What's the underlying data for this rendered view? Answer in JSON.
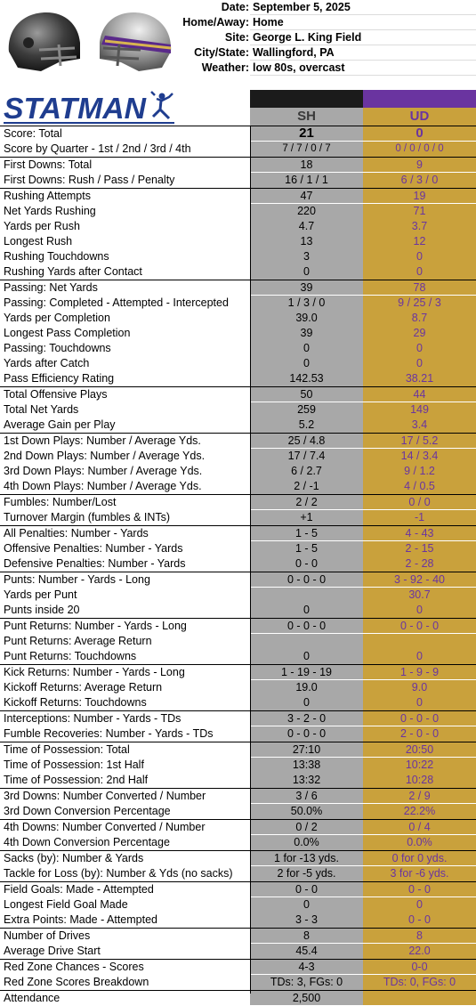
{
  "game_info": [
    {
      "label": "Date:",
      "value": "September 5, 2025"
    },
    {
      "label": "Home/Away:",
      "value": "Home"
    },
    {
      "label": "Site:",
      "value": "George L. King Field"
    },
    {
      "label": "City/State:",
      "value": "Wallingford, PA"
    },
    {
      "label": "Weather:",
      "value": "low 80s, overcast"
    }
  ],
  "logo": {
    "text": "STATMAN",
    "icon": "quarterback-icon"
  },
  "helmets": {
    "left_icon": "helmet-dark-icon",
    "right_icon": "helmet-silver-purple-icon"
  },
  "teams": {
    "home": "SH",
    "away": "UD"
  },
  "colors": {
    "home_col": "#a8a8a8",
    "away_col": "#c9a13c",
    "away_text": "#6a34a0",
    "logo_blue": "#1f3d8f"
  },
  "stats": [
    {
      "label": "Score:  Total",
      "sh": "21",
      "ud": "0"
    },
    {
      "label": "Score by Quarter - 1st / 2nd / 3rd / 4th",
      "sh": "7 / 7 / 0 / 7",
      "ud": "0 / 0 / 0 / 0"
    },
    {
      "label": "First Downs:  Total",
      "sh": "18",
      "ud": "9"
    },
    {
      "label": "First Downs:  Rush / Pass / Penalty",
      "sh": "16 / 1 / 1",
      "ud": "6 / 3 / 0"
    },
    {
      "label": "Rushing Attempts",
      "sh": "47",
      "ud": "19"
    },
    {
      "label": "Net Yards Rushing",
      "sh": "220",
      "ud": "71"
    },
    {
      "label": "Yards per Rush",
      "sh": "4.7",
      "ud": "3.7"
    },
    {
      "label": "Longest Rush",
      "sh": "13",
      "ud": "12"
    },
    {
      "label": "Rushing Touchdowns",
      "sh": "3",
      "ud": "0"
    },
    {
      "label": "Rushing Yards after Contact",
      "sh": "0",
      "ud": "0"
    },
    {
      "label": "Passing:  Net Yards",
      "sh": "39",
      "ud": "78"
    },
    {
      "label": "Passing:  Completed - Attempted - Intercepted",
      "sh": "1 / 3 / 0",
      "ud": "9 / 25 / 3"
    },
    {
      "label": "Yards per Completion",
      "sh": "39.0",
      "ud": "8.7"
    },
    {
      "label": "Longest Pass Completion",
      "sh": "39",
      "ud": "29"
    },
    {
      "label": "Passing:  Touchdowns",
      "sh": "0",
      "ud": "0"
    },
    {
      "label": "Yards after Catch",
      "sh": "0",
      "ud": "0"
    },
    {
      "label": "Pass Efficiency Rating",
      "sh": "142.53",
      "ud": "38.21"
    },
    {
      "label": "Total Offensive Plays",
      "sh": "50",
      "ud": "44"
    },
    {
      "label": "Total Net Yards",
      "sh": "259",
      "ud": "149"
    },
    {
      "label": "Average Gain per Play",
      "sh": "5.2",
      "ud": "3.4"
    },
    {
      "label": "1st Down Plays:  Number / Average Yds.",
      "sh": "25 / 4.8",
      "ud": "17 / 5.2"
    },
    {
      "label": "2nd Down Plays:  Number / Average Yds.",
      "sh": "17 / 7.4",
      "ud": "14 / 3.4"
    },
    {
      "label": "3rd Down Plays:  Number / Average Yds.",
      "sh": "6 / 2.7",
      "ud": "9 / 1.2"
    },
    {
      "label": "4th Down Plays:  Number / Average Yds.",
      "sh": "2 / -1",
      "ud": "4 / 0.5"
    },
    {
      "label": "Fumbles:  Number/Lost",
      "sh": "2 / 2",
      "ud": "0 / 0"
    },
    {
      "label": "Turnover Margin (fumbles & INTs)",
      "sh": "+1",
      "ud": "-1"
    },
    {
      "label": "All Penalties:  Number - Yards",
      "sh": "1 - 5",
      "ud": "4 - 43"
    },
    {
      "label": "Offensive Penalties:  Number - Yards",
      "sh": "1 - 5",
      "ud": "2 - 15"
    },
    {
      "label": "Defensive Penalties:  Number - Yards",
      "sh": "0 - 0",
      "ud": "2 - 28"
    },
    {
      "label": "Punts:  Number - Yards - Long",
      "sh": "0 - 0 - 0",
      "ud": "3 - 92 - 40"
    },
    {
      "label": "Yards per Punt",
      "sh": "",
      "ud": "30.7"
    },
    {
      "label": "Punts inside 20",
      "sh": "0",
      "ud": "0"
    },
    {
      "label": "Punt Returns:  Number - Yards - Long",
      "sh": "0 - 0 - 0",
      "ud": "0 - 0 - 0"
    },
    {
      "label": "Punt Returns:  Average Return",
      "sh": "",
      "ud": ""
    },
    {
      "label": "Punt Returns:  Touchdowns",
      "sh": "0",
      "ud": "0"
    },
    {
      "label": "Kick Returns:  Number - Yards - Long",
      "sh": "1 - 19 - 19",
      "ud": "1 - 9 - 9"
    },
    {
      "label": "Kickoff Returns:  Average Return",
      "sh": "19.0",
      "ud": "9.0"
    },
    {
      "label": "Kickoff Returns:  Touchdowns",
      "sh": "0",
      "ud": "0"
    },
    {
      "label": "Interceptions: Number - Yards - TDs",
      "sh": "3 - 2 - 0",
      "ud": "0 - 0 - 0"
    },
    {
      "label": "Fumble Recoveries: Number - Yards - TDs",
      "sh": "0 - 0 - 0",
      "ud": "2 - 0 - 0"
    },
    {
      "label": "Time of Possession:  Total",
      "sh": "27:10",
      "ud": "20:50"
    },
    {
      "label": "Time of Possession:   1st Half",
      "sh": "13:38",
      "ud": "10:22"
    },
    {
      "label": "Time of Possession:   2nd Half",
      "sh": "13:32",
      "ud": "10:28"
    },
    {
      "label": "3rd Downs:  Number Converted / Number",
      "sh": "3 / 6",
      "ud": "2 / 9"
    },
    {
      "label": "3rd Down Conversion Percentage",
      "sh": "50.0%",
      "ud": "22.2%"
    },
    {
      "label": "4th Downs:  Number Converted / Number",
      "sh": "0 / 2",
      "ud": "0 / 4"
    },
    {
      "label": "4th Down Conversion Percentage",
      "sh": "0.0%",
      "ud": "0.0%"
    },
    {
      "label": "Sacks (by):  Number & Yards",
      "sh": "1 for -13 yds.",
      "ud": "0 for 0 yds."
    },
    {
      "label": "Tackle for Loss (by): Number & Yds (no sacks)",
      "sh": "2 for -5 yds.",
      "ud": "3 for -6 yds."
    },
    {
      "label": "Field Goals:  Made - Attempted",
      "sh": "0 - 0",
      "ud": "0 - 0"
    },
    {
      "label": "Longest Field Goal Made",
      "sh": "0",
      "ud": "0"
    },
    {
      "label": "Extra Points:  Made - Attempted",
      "sh": "3 - 3",
      "ud": "0 - 0"
    },
    {
      "label": "Number of Drives",
      "sh": "8",
      "ud": "8"
    },
    {
      "label": "Average Drive Start",
      "sh": "45.4",
      "ud": "22.0"
    },
    {
      "label": "Red Zone Chances - Scores",
      "sh": "4-3",
      "ud": "0-0"
    },
    {
      "label": "Red Zone Scores Breakdown",
      "sh": "TDs: 3, FGs: 0",
      "ud": "TDs: 0, FGs: 0"
    },
    {
      "label": "Attendance",
      "sh": "2,500",
      "ud": ""
    }
  ]
}
